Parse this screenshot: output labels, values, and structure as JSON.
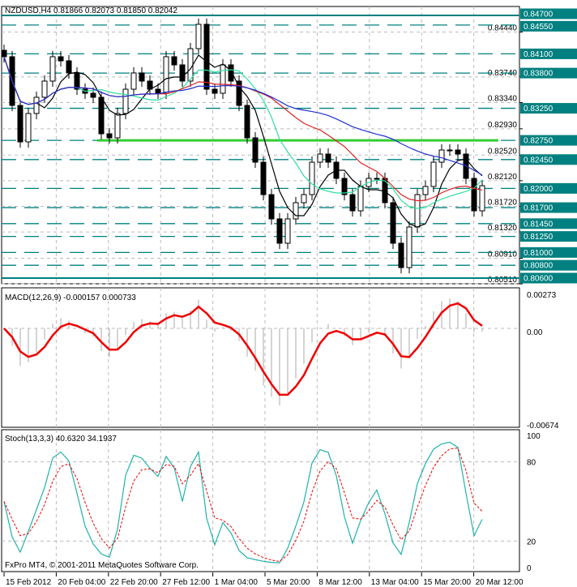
{
  "header": {
    "symbol": "NZDUSD,H4",
    "ohlc": "0.81866 0.82073 0.81850 0.82042"
  },
  "macd_label": "MACD(12,26,9) -0.000157 0.000733",
  "stoch_label": "Stoch(13,3,3) 40.6320 34.1937",
  "copyright": "FxPro MT4, © 2001-2011 MetaQuotes Software Corp.",
  "colors": {
    "level": "#008080",
    "support": "#33cc33",
    "macd": "#ee0000",
    "stoch_main": "#20b2aa",
    "stoch_signal": "#ee0000",
    "ma_fast": "#000000",
    "ma_mid": "#2fe0a0",
    "ma_slow_red": "#dd2222",
    "ma_slowest": "#2030d0"
  },
  "chart_data": {
    "type": "candlestick",
    "title": "NZDUSD,H4",
    "closes": [
      0.84055,
      0.83295,
      0.82726,
      0.83169,
      0.83422,
      0.83675,
      0.84055,
      0.83991,
      0.83802,
      0.83548,
      0.83485,
      0.83422,
      0.82852,
      0.82789,
      0.83169,
      0.83548,
      0.83802,
      0.83675,
      0.83548,
      0.83485,
      0.84055,
      0.83928,
      0.83675,
      0.84181,
      0.84561,
      0.83548,
      0.83485,
      0.83928,
      0.83675,
      0.83295,
      0.82789,
      0.82409,
      0.81903,
      0.81524,
      0.81144,
      0.81524,
      0.81777,
      0.81903,
      0.82409,
      0.82536,
      0.82409,
      0.82156,
      0.81903,
      0.8165,
      0.8203,
      0.82156,
      0.82156,
      0.81777,
      0.81144,
      0.80764,
      0.81397,
      0.81903,
      0.8203,
      0.82409,
      0.82599,
      0.82599,
      0.82536,
      0.82156,
      0.8165,
      0.82042
    ],
    "ylim": [
      0.8051,
      0.8475
    ],
    "highlighted_levels": [
      "0.84700",
      "0.84550",
      "0.84100",
      "0.83800",
      "0.83250",
      "0.82750",
      "0.82450",
      "0.82000",
      "0.81700",
      "0.81450",
      "0.81250",
      "0.81000",
      "0.80800",
      "0.80600"
    ],
    "price_ticks": [
      "0.84440",
      "0.83740",
      "0.83340",
      "0.82930",
      "0.82520",
      "0.82120",
      "0.81720",
      "0.81320",
      "0.80910",
      "0.80510"
    ],
    "support_line": 0.8275,
    "time_labels": [
      "15 Feb 2012",
      "20 Feb 04:00",
      "22 Feb 20:00",
      "27 Feb 12:00",
      "1 Mar 04:00",
      "5 Mar 20:00",
      "8 Mar 12:00",
      "13 Mar 04:00",
      "15 Mar 20:00",
      "20 Mar 12:00"
    ],
    "macd_ticks": [
      "0.00273",
      "0.00",
      "-0.00674"
    ],
    "stoch_ticks": [
      "100",
      "80",
      "20",
      "0"
    ]
  }
}
